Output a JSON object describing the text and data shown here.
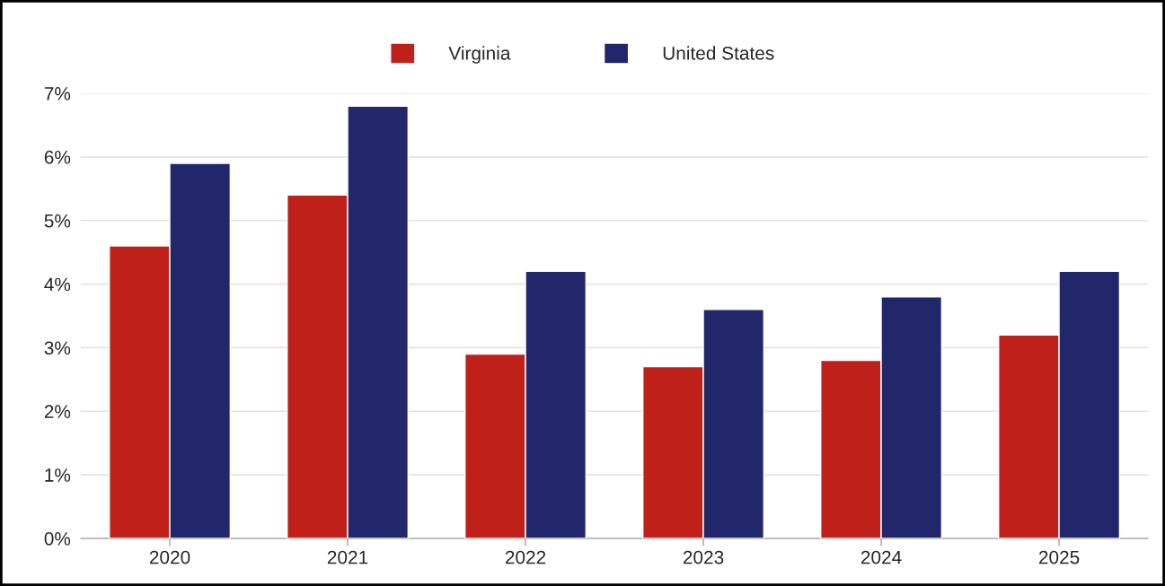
{
  "chart_data": {
    "type": "bar",
    "categories": [
      "2020",
      "2021",
      "2022",
      "2023",
      "2024",
      "2025"
    ],
    "series": [
      {
        "name": "Virginia",
        "color": "#bf211a",
        "values": [
          4.6,
          5.4,
          2.9,
          2.7,
          2.8,
          3.2
        ]
      },
      {
        "name": "United States",
        "color": "#22276b",
        "values": [
          5.9,
          6.8,
          4.2,
          3.6,
          3.8,
          4.2
        ]
      }
    ],
    "ylim": [
      0,
      7
    ],
    "yticks": [
      {
        "value": 0,
        "label": "0%"
      },
      {
        "value": 1,
        "label": "1%"
      },
      {
        "value": 2,
        "label": "2%"
      },
      {
        "value": 3,
        "label": "3%"
      },
      {
        "value": 4,
        "label": "4%"
      },
      {
        "value": 5,
        "label": "5%"
      },
      {
        "value": 6,
        "label": "6%"
      },
      {
        "value": 7,
        "label": "7%"
      }
    ],
    "grid": "y",
    "legend": "top"
  }
}
